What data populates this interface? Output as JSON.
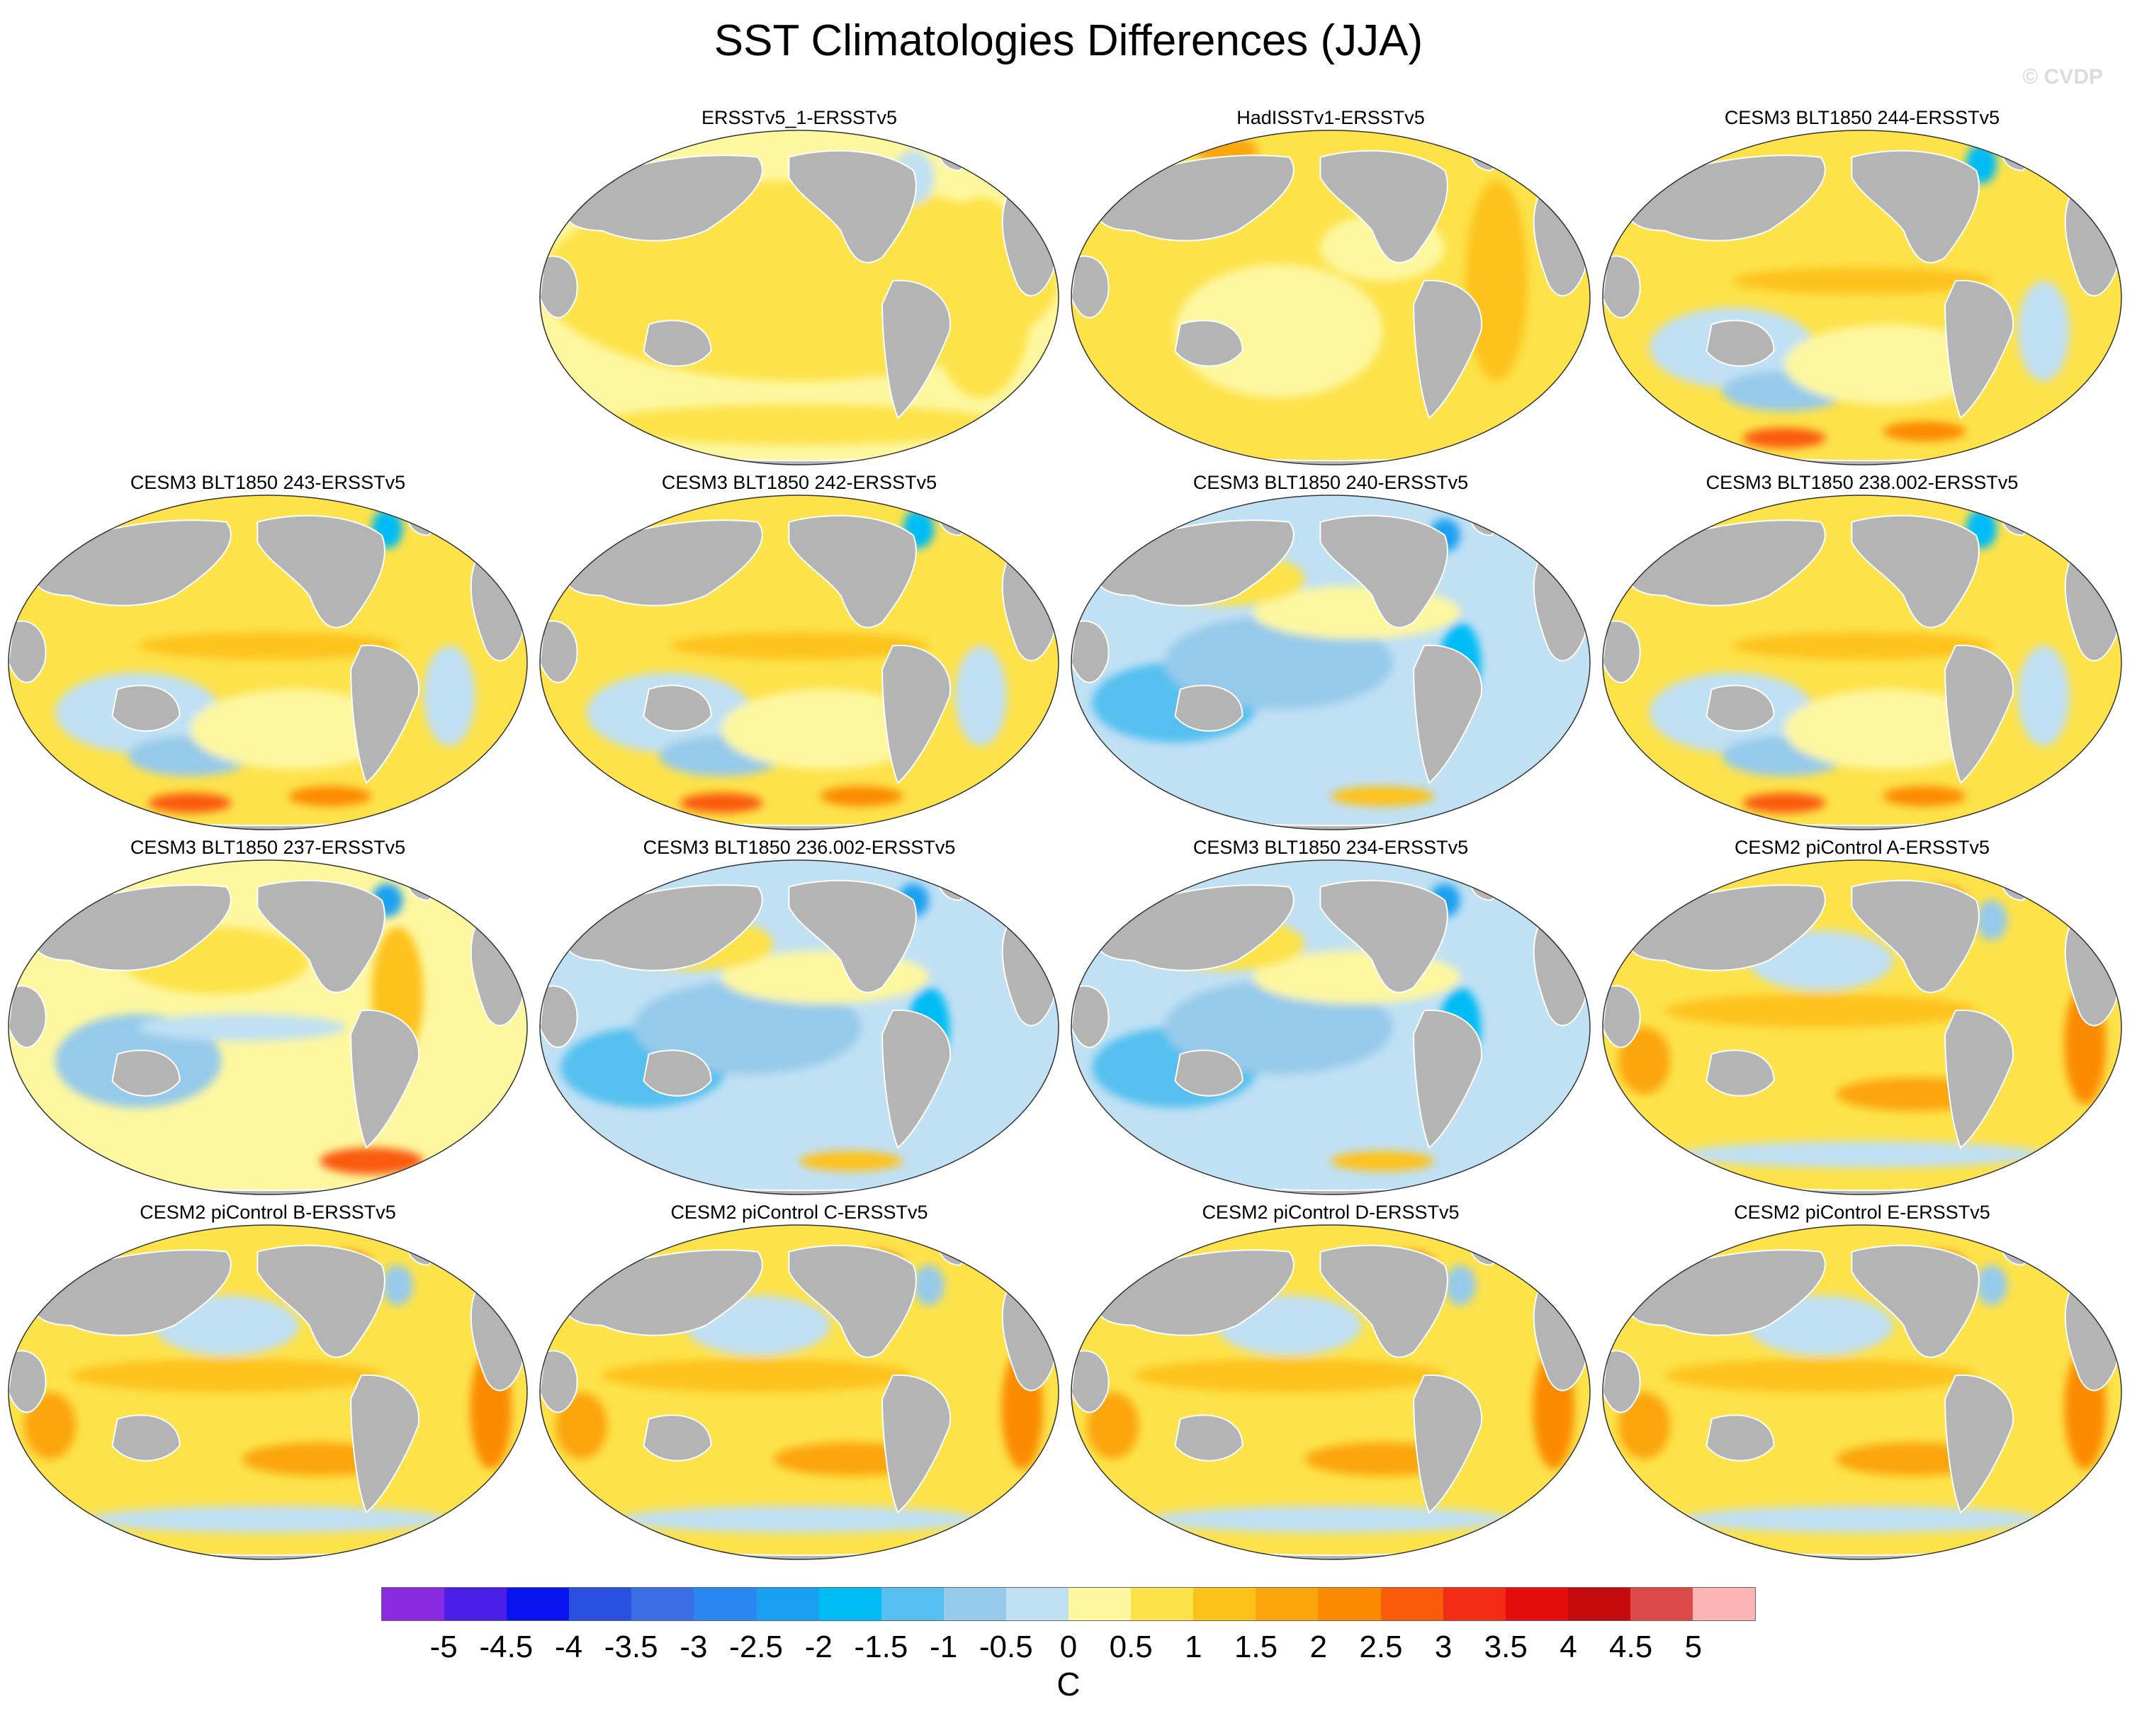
{
  "title": "SST Climatologies Differences (JJA)",
  "credit": "© CVDP",
  "colors": {
    "land": "#b4b4b4",
    "ocean_default": "#fdf6a8",
    "outline": "#333333"
  },
  "panels": [
    {
      "label": "ERSSTv5_1-ERSSTv5",
      "pattern": "uniform_warm"
    },
    {
      "label": "HadISSTv1-ERSSTv5",
      "pattern": "uniform_warm_strong"
    },
    {
      "label": "CESM3 BLT1850 244-ERSSTv5",
      "pattern": "mixed"
    },
    {
      "label": "CESM3 BLT1850 243-ERSSTv5",
      "pattern": "mixed"
    },
    {
      "label": "CESM3 BLT1850 242-ERSSTv5",
      "pattern": "mixed"
    },
    {
      "label": "CESM3 BLT1850 240-ERSSTv5",
      "pattern": "cool"
    },
    {
      "label": "CESM3 BLT1850 238.002-ERSSTv5",
      "pattern": "mixed"
    },
    {
      "label": "CESM3 BLT1850 237-ERSSTv5",
      "pattern": "cool_mixed"
    },
    {
      "label": "CESM3 BLT1850 236.002-ERSSTv5",
      "pattern": "cool"
    },
    {
      "label": "CESM3 BLT1850 234-ERSSTv5",
      "pattern": "cool"
    },
    {
      "label": "CESM2 piControl A-ERSSTv5",
      "pattern": "warm_rim"
    },
    {
      "label": "CESM2 piControl B-ERSSTv5",
      "pattern": "warm_rim"
    },
    {
      "label": "CESM2 piControl C-ERSSTv5",
      "pattern": "warm_rim"
    },
    {
      "label": "CESM2 piControl D-ERSSTv5",
      "pattern": "warm_rim"
    },
    {
      "label": "CESM2 piControl E-ERSSTv5",
      "pattern": "warm_rim"
    }
  ],
  "colorbar": {
    "unit": "C",
    "ticks": [
      "-5",
      "-4.5",
      "-4",
      "-3.5",
      "-3",
      "-2.5",
      "-2",
      "-1.5",
      "-1",
      "-0.5",
      "0",
      "0.5",
      "1",
      "1.5",
      "2",
      "2.5",
      "3",
      "3.5",
      "4",
      "4.5",
      "5"
    ],
    "colors": [
      "#8a2be2",
      "#4b1fe8",
      "#0a14f0",
      "#2a50e0",
      "#3c6ee6",
      "#2a86f0",
      "#1aa0f0",
      "#00bcf5",
      "#55c0ef",
      "#96caea",
      "#c0e0f4",
      "#fdf7a0",
      "#fde24a",
      "#fdc21a",
      "#fca50c",
      "#fc8a00",
      "#fa5a0a",
      "#f32a14",
      "#e50c0c",
      "#c40a0a",
      "#dc4a4a",
      "#fdb4b4"
    ]
  }
}
